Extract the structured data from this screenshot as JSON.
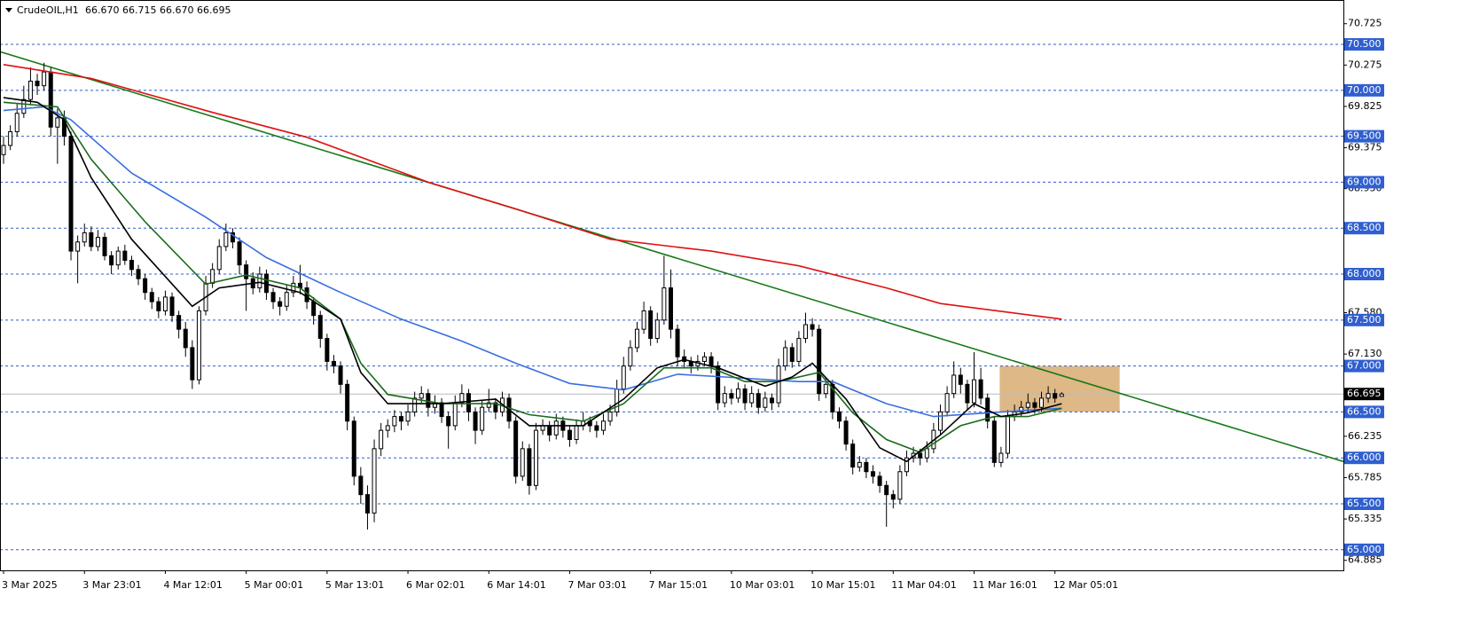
{
  "chart_data": {
    "type": "candlestick",
    "title": "CrudeOIL,H1",
    "quote": "66.670 66.715 66.670 66.695",
    "xlim": [
      -0.53,
      198.8
    ],
    "ylim": [
      64.776,
      70.983
    ],
    "xticks": [
      {
        "value": 0,
        "label": "3 Mar 2025"
      },
      {
        "value": 12,
        "label": "3 Mar 23:01"
      },
      {
        "value": 24,
        "label": "4 Mar 12:01"
      },
      {
        "value": 36,
        "label": "5 Mar 00:01"
      },
      {
        "value": 48,
        "label": "5 Mar 13:01"
      },
      {
        "value": 60,
        "label": "6 Mar 02:01"
      },
      {
        "value": 72,
        "label": "6 Mar 14:01"
      },
      {
        "value": 84,
        "label": "7 Mar 03:01"
      },
      {
        "value": 96,
        "label": "7 Mar 15:01"
      },
      {
        "value": 108,
        "label": "10 Mar 03:01"
      },
      {
        "value": 120,
        "label": "10 Mar 15:01"
      },
      {
        "value": 132,
        "label": "11 Mar 04:01"
      },
      {
        "value": 144,
        "label": "11 Mar 16:01"
      },
      {
        "value": 156,
        "label": "12 Mar 05:01"
      }
    ],
    "yticks": [
      70.725,
      70.275,
      69.825,
      69.375,
      {
        "value": 68.93,
        "label": "68.930"
      },
      {
        "value": 67.58,
        "label": "67.580"
      },
      {
        "value": 67.13,
        "label": "67.130"
      },
      66.235,
      65.785,
      65.335,
      64.885
    ],
    "levels": {
      "color": "#2f5fd0",
      "values": [
        {
          "value": 70.5,
          "label": "70.500"
        },
        {
          "value": 70,
          "label": "70.000"
        },
        {
          "value": 69.5,
          "label": "69.500"
        },
        {
          "value": 69,
          "label": "69.000"
        },
        {
          "value": 68.5,
          "label": "68.500"
        },
        {
          "value": 68,
          "label": "68.000"
        },
        {
          "value": 67.5,
          "label": "67.500"
        },
        {
          "value": 67,
          "label": "67.000"
        },
        {
          "value": 66.5,
          "label": "66.500"
        },
        {
          "value": 66,
          "label": "66.000"
        },
        {
          "value": 65.5,
          "label": "65.500"
        },
        {
          "value": 65,
          "label": "65.000"
        }
      ]
    },
    "last_price": 66.695,
    "zone": {
      "color": "#deb887",
      "x": [
        147.8,
        165.6
      ],
      "values": [
        66.5,
        67.0
      ]
    },
    "trendline": {
      "color": "#1a7a1a",
      "x": [
        -0.53,
        198.8
      ],
      "values": [
        70.42,
        65.96
      ]
    },
    "series": [
      {
        "color": "#e01010",
        "x": [
          0,
          13,
          31,
          45,
          63,
          76,
          90,
          105,
          118,
          131,
          139,
          157
        ],
        "values": [
          70.28,
          70.13,
          69.76,
          69.49,
          69.0,
          68.71,
          68.38,
          68.25,
          68.09,
          67.85,
          67.68,
          67.51
        ]
      },
      {
        "color": "#3a6fe0",
        "x": [
          0,
          6,
          10,
          19,
          30,
          39,
          50,
          59,
          68,
          76,
          84,
          92,
          100,
          107,
          118,
          123,
          131,
          138,
          146,
          157
        ],
        "values": [
          69.78,
          69.82,
          69.68,
          69.1,
          68.62,
          68.18,
          67.8,
          67.51,
          67.27,
          67.03,
          66.81,
          66.74,
          66.91,
          66.88,
          66.83,
          66.83,
          66.59,
          66.45,
          66.49,
          66.54
        ]
      },
      {
        "color": "#1a6b1a",
        "x": [
          0,
          8,
          13,
          21,
          30,
          36,
          44,
          50,
          53,
          57,
          65,
          73,
          78,
          86,
          92,
          98,
          105,
          110,
          115,
          121,
          126,
          131,
          136,
          142,
          147,
          152,
          157
        ],
        "values": [
          69.87,
          69.82,
          69.25,
          68.57,
          67.89,
          67.99,
          67.85,
          67.51,
          67.03,
          66.69,
          66.59,
          66.59,
          66.47,
          66.4,
          66.59,
          66.98,
          66.98,
          66.83,
          66.83,
          66.93,
          66.49,
          66.2,
          66.06,
          66.35,
          66.45,
          66.45,
          66.54
        ]
      },
      {
        "color": "#000000",
        "x": [
          0,
          5,
          9,
          13,
          19,
          28,
          32,
          38,
          44,
          50,
          53,
          57,
          65,
          73,
          78,
          86,
          92,
          97,
          101,
          106,
          113,
          117,
          120,
          125,
          130,
          134,
          139,
          144,
          148,
          152,
          157
        ],
        "values": [
          69.92,
          69.87,
          69.68,
          69.05,
          68.38,
          67.65,
          67.85,
          67.91,
          67.8,
          67.51,
          66.93,
          66.59,
          66.59,
          66.64,
          66.35,
          66.35,
          66.64,
          66.98,
          67.07,
          66.98,
          66.78,
          66.88,
          67.03,
          66.64,
          66.11,
          65.96,
          66.25,
          66.59,
          66.45,
          66.49,
          66.59
        ]
      }
    ],
    "ohlc": [
      [
        69.3,
        69.5,
        69.2,
        69.4
      ],
      [
        69.4,
        69.62,
        69.35,
        69.55
      ],
      [
        69.55,
        69.85,
        69.5,
        69.75
      ],
      [
        69.75,
        70.05,
        69.7,
        69.9
      ],
      [
        69.9,
        70.25,
        69.85,
        70.1
      ],
      [
        70.1,
        70.18,
        69.95,
        70.05
      ],
      [
        70.05,
        70.3,
        70.0,
        70.2
      ],
      [
        70.2,
        70.25,
        69.5,
        69.6
      ],
      [
        69.6,
        69.8,
        69.2,
        69.7
      ],
      [
        69.7,
        69.78,
        69.4,
        69.5
      ],
      [
        69.5,
        69.55,
        68.15,
        68.25
      ],
      [
        68.25,
        68.42,
        67.9,
        68.35
      ],
      [
        68.35,
        68.55,
        68.3,
        68.45
      ],
      [
        68.45,
        68.52,
        68.25,
        68.3
      ],
      [
        68.3,
        68.48,
        68.25,
        68.4
      ],
      [
        68.4,
        68.45,
        68.15,
        68.2
      ],
      [
        68.2,
        68.25,
        68.0,
        68.1
      ],
      [
        68.1,
        68.3,
        68.05,
        68.25
      ],
      [
        68.25,
        68.32,
        68.1,
        68.15
      ],
      [
        68.15,
        68.2,
        67.98,
        68.05
      ],
      [
        68.05,
        68.1,
        67.88,
        67.95
      ],
      [
        67.95,
        68.0,
        67.72,
        67.8
      ],
      [
        67.8,
        67.85,
        67.62,
        67.7
      ],
      [
        67.7,
        67.75,
        67.52,
        67.6
      ],
      [
        67.6,
        67.82,
        67.55,
        67.75
      ],
      [
        67.75,
        67.8,
        67.48,
        67.55
      ],
      [
        67.55,
        67.6,
        67.3,
        67.4
      ],
      [
        67.4,
        67.48,
        67.1,
        67.2
      ],
      [
        67.2,
        67.28,
        66.75,
        66.85
      ],
      [
        66.85,
        67.65,
        66.8,
        67.6
      ],
      [
        67.6,
        67.98,
        67.55,
        67.9
      ],
      [
        67.9,
        68.12,
        67.85,
        68.05
      ],
      [
        68.05,
        68.38,
        68.0,
        68.3
      ],
      [
        68.3,
        68.55,
        68.25,
        68.45
      ],
      [
        68.45,
        68.5,
        68.28,
        68.35
      ],
      [
        68.35,
        68.4,
        68.0,
        68.1
      ],
      [
        68.1,
        68.15,
        67.6,
        67.95
      ],
      [
        67.95,
        68.02,
        67.78,
        67.85
      ],
      [
        67.85,
        68.08,
        67.8,
        68.0
      ],
      [
        68.0,
        68.05,
        67.72,
        67.8
      ],
      [
        67.8,
        67.85,
        67.62,
        67.7
      ],
      [
        67.7,
        67.75,
        67.55,
        67.65
      ],
      [
        67.65,
        67.88,
        67.6,
        67.8
      ],
      [
        67.8,
        67.98,
        67.75,
        67.9
      ],
      [
        67.9,
        68.1,
        67.78,
        67.85
      ],
      [
        67.85,
        67.92,
        67.62,
        67.7
      ],
      [
        67.7,
        67.75,
        67.45,
        67.55
      ],
      [
        67.55,
        67.6,
        67.2,
        67.3
      ],
      [
        67.3,
        67.35,
        66.95,
        67.05
      ],
      [
        67.05,
        67.12,
        66.92,
        67.0
      ],
      [
        67.0,
        67.05,
        66.7,
        66.8
      ],
      [
        66.8,
        66.85,
        66.3,
        66.4
      ],
      [
        66.4,
        66.45,
        65.7,
        65.8
      ],
      [
        65.8,
        65.9,
        65.5,
        65.6
      ],
      [
        65.6,
        65.7,
        65.22,
        65.4
      ],
      [
        65.4,
        66.2,
        65.3,
        66.1
      ],
      [
        66.1,
        66.38,
        66.02,
        66.3
      ],
      [
        66.3,
        66.42,
        66.22,
        66.35
      ],
      [
        66.35,
        66.52,
        66.28,
        66.45
      ],
      [
        66.45,
        66.5,
        66.3,
        66.4
      ],
      [
        66.4,
        66.58,
        66.35,
        66.5
      ],
      [
        66.5,
        66.72,
        66.45,
        66.65
      ],
      [
        66.65,
        66.78,
        66.6,
        66.7
      ],
      [
        66.7,
        66.75,
        66.45,
        66.55
      ],
      [
        66.55,
        66.68,
        66.48,
        66.6
      ],
      [
        66.6,
        66.65,
        66.38,
        66.45
      ],
      [
        66.45,
        66.5,
        66.1,
        66.35
      ],
      [
        66.35,
        66.68,
        66.3,
        66.6
      ],
      [
        66.6,
        66.8,
        66.55,
        66.7
      ],
      [
        66.7,
        66.75,
        66.4,
        66.5
      ],
      [
        66.5,
        66.55,
        66.15,
        66.3
      ],
      [
        66.3,
        66.62,
        66.25,
        66.55
      ],
      [
        66.55,
        66.75,
        66.5,
        66.6
      ],
      [
        66.6,
        66.65,
        66.42,
        66.5
      ],
      [
        66.5,
        66.72,
        66.45,
        66.65
      ],
      [
        66.65,
        66.7,
        66.32,
        66.4
      ],
      [
        66.4,
        66.45,
        65.72,
        65.8
      ],
      [
        65.8,
        66.18,
        65.75,
        66.1
      ],
      [
        66.1,
        66.15,
        65.6,
        65.7
      ],
      [
        65.7,
        66.38,
        65.65,
        66.3
      ],
      [
        66.3,
        66.42,
        66.25,
        66.35
      ],
      [
        66.35,
        66.4,
        66.18,
        66.25
      ],
      [
        66.25,
        66.48,
        66.2,
        66.4
      ],
      [
        66.4,
        66.45,
        66.22,
        66.3
      ],
      [
        66.3,
        66.35,
        66.12,
        66.2
      ],
      [
        66.2,
        66.42,
        66.15,
        66.35
      ],
      [
        66.35,
        66.5,
        66.3,
        66.4
      ],
      [
        66.4,
        66.45,
        66.28,
        66.35
      ],
      [
        66.35,
        66.4,
        66.22,
        66.3
      ],
      [
        66.3,
        66.48,
        66.25,
        66.4
      ],
      [
        66.4,
        66.58,
        66.35,
        66.5
      ],
      [
        66.5,
        66.85,
        66.45,
        66.75
      ],
      [
        66.75,
        67.1,
        66.7,
        67.0
      ],
      [
        67.0,
        67.28,
        66.95,
        67.2
      ],
      [
        67.2,
        67.48,
        67.15,
        67.4
      ],
      [
        67.4,
        67.7,
        67.35,
        67.6
      ],
      [
        67.6,
        67.65,
        67.22,
        67.3
      ],
      [
        67.3,
        67.58,
        67.25,
        67.5
      ],
      [
        67.5,
        68.2,
        67.45,
        67.85
      ],
      [
        67.85,
        68.05,
        67.3,
        67.4
      ],
      [
        67.4,
        67.45,
        67.0,
        67.1
      ],
      [
        67.1,
        67.18,
        66.98,
        67.05
      ],
      [
        67.05,
        67.1,
        66.92,
        67.0
      ],
      [
        67.0,
        67.12,
        66.95,
        67.05
      ],
      [
        67.05,
        67.15,
        67.0,
        67.1
      ],
      [
        67.1,
        67.15,
        66.92,
        67.0
      ],
      [
        67.0,
        67.05,
        66.52,
        66.6
      ],
      [
        66.6,
        66.78,
        66.55,
        66.7
      ],
      [
        66.7,
        66.75,
        66.58,
        66.65
      ],
      [
        66.65,
        66.82,
        66.6,
        66.75
      ],
      [
        66.75,
        66.8,
        66.52,
        66.6
      ],
      [
        66.6,
        66.78,
        66.55,
        66.7
      ],
      [
        66.7,
        66.75,
        66.48,
        66.55
      ],
      [
        66.55,
        66.72,
        66.5,
        66.65
      ],
      [
        66.65,
        66.7,
        66.52,
        66.6
      ],
      [
        66.6,
        67.08,
        66.55,
        67.0
      ],
      [
        67.0,
        67.28,
        66.95,
        67.2
      ],
      [
        67.2,
        67.25,
        66.98,
        67.05
      ],
      [
        67.05,
        67.38,
        67.0,
        67.3
      ],
      [
        67.3,
        67.58,
        67.25,
        67.45
      ],
      [
        67.45,
        67.52,
        67.32,
        67.4
      ],
      [
        67.4,
        67.45,
        66.62,
        66.7
      ],
      [
        66.7,
        66.88,
        66.65,
        66.8
      ],
      [
        66.8,
        66.85,
        66.42,
        66.5
      ],
      [
        66.5,
        66.55,
        66.32,
        66.4
      ],
      [
        66.4,
        66.45,
        66.08,
        66.15
      ],
      [
        66.15,
        66.2,
        65.82,
        65.9
      ],
      [
        65.9,
        66.02,
        65.85,
        65.95
      ],
      [
        65.95,
        66.0,
        65.78,
        65.85
      ],
      [
        65.85,
        65.92,
        65.72,
        65.8
      ],
      [
        65.8,
        65.85,
        65.62,
        65.7
      ],
      [
        65.7,
        65.75,
        65.25,
        65.6
      ],
      [
        65.6,
        65.65,
        65.45,
        65.55
      ],
      [
        65.55,
        65.92,
        65.5,
        65.85
      ],
      [
        65.85,
        66.08,
        65.8,
        66.0
      ],
      [
        66.0,
        66.12,
        65.95,
        66.05
      ],
      [
        66.05,
        66.1,
        65.92,
        66.0
      ],
      [
        66.0,
        66.18,
        65.95,
        66.1
      ],
      [
        66.1,
        66.38,
        66.05,
        66.3
      ],
      [
        66.3,
        66.58,
        66.25,
        66.5
      ],
      [
        66.5,
        66.78,
        66.45,
        66.7
      ],
      [
        66.7,
        67.05,
        66.65,
        66.9
      ],
      [
        66.9,
        66.98,
        66.7,
        66.8
      ],
      [
        66.8,
        66.85,
        66.52,
        66.6
      ],
      [
        66.6,
        67.15,
        66.55,
        66.85
      ],
      [
        66.85,
        66.98,
        66.58,
        66.65
      ],
      [
        66.65,
        66.7,
        66.32,
        66.4
      ],
      [
        66.4,
        66.45,
        65.9,
        65.95
      ],
      [
        65.95,
        66.12,
        65.9,
        66.05
      ],
      [
        66.05,
        66.52,
        66.0,
        66.45
      ],
      [
        66.45,
        66.58,
        66.4,
        66.5
      ],
      [
        66.5,
        66.62,
        66.45,
        66.55
      ],
      [
        66.55,
        66.7,
        66.5,
        66.6
      ],
      [
        66.6,
        66.65,
        66.48,
        66.55
      ],
      [
        66.55,
        66.72,
        66.5,
        66.65
      ],
      [
        66.65,
        66.78,
        66.6,
        66.7
      ],
      [
        66.7,
        66.75,
        66.6,
        66.65
      ],
      [
        66.67,
        66.715,
        66.67,
        66.695
      ]
    ]
  }
}
